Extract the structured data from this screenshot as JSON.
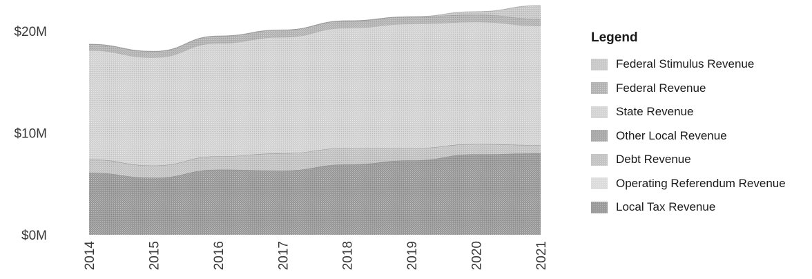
{
  "chart_data": {
    "type": "area",
    "stacked": true,
    "title": "",
    "xlabel": "",
    "ylabel": "",
    "x": [
      "2014",
      "2015",
      "2016",
      "2017",
      "2018",
      "2019",
      "2020",
      "2021"
    ],
    "y_ticks": [
      "$0M",
      "$10M",
      "$20M"
    ],
    "ylim": [
      0,
      22.5
    ],
    "legend_title": "Legend",
    "legend_position": "right",
    "series": [
      {
        "name": "Local Tax Revenue",
        "color": "#9a9a9a",
        "values": [
          6.1,
          5.6,
          6.4,
          6.3,
          6.9,
          7.3,
          7.9,
          8.0
        ]
      },
      {
        "name": "Operating Referendum Revenue",
        "color": "#dcdcdc",
        "values": [
          0.0,
          0.0,
          0.0,
          0.0,
          0.0,
          0.0,
          0.0,
          0.0
        ]
      },
      {
        "name": "Debt Revenue",
        "color": "#c4c4c4",
        "values": [
          1.3,
          1.2,
          1.3,
          1.7,
          1.6,
          1.2,
          1.0,
          0.8
        ]
      },
      {
        "name": "Other Local Revenue",
        "color": "#a9a9a9",
        "values": [
          0.0,
          0.0,
          0.0,
          0.0,
          0.0,
          0.0,
          0.0,
          0.0
        ]
      },
      {
        "name": "State Revenue",
        "color": "#d4d4d4",
        "values": [
          10.7,
          10.6,
          11.1,
          11.4,
          11.8,
          12.2,
          12.0,
          11.7
        ]
      },
      {
        "name": "Federal Revenue",
        "color": "#b4b4b4",
        "values": [
          0.6,
          0.6,
          0.7,
          0.7,
          0.7,
          0.7,
          0.7,
          0.7
        ]
      },
      {
        "name": "Federal Stimulus Revenue",
        "color": "#c9c9c9",
        "values": [
          0.0,
          0.0,
          0.0,
          0.0,
          0.0,
          0.0,
          0.3,
          1.3
        ]
      }
    ],
    "legend_order": [
      "Federal Stimulus Revenue",
      "Federal Revenue",
      "State Revenue",
      "Other Local Revenue",
      "Debt Revenue",
      "Operating Referendum Revenue",
      "Local Tax Revenue"
    ]
  }
}
